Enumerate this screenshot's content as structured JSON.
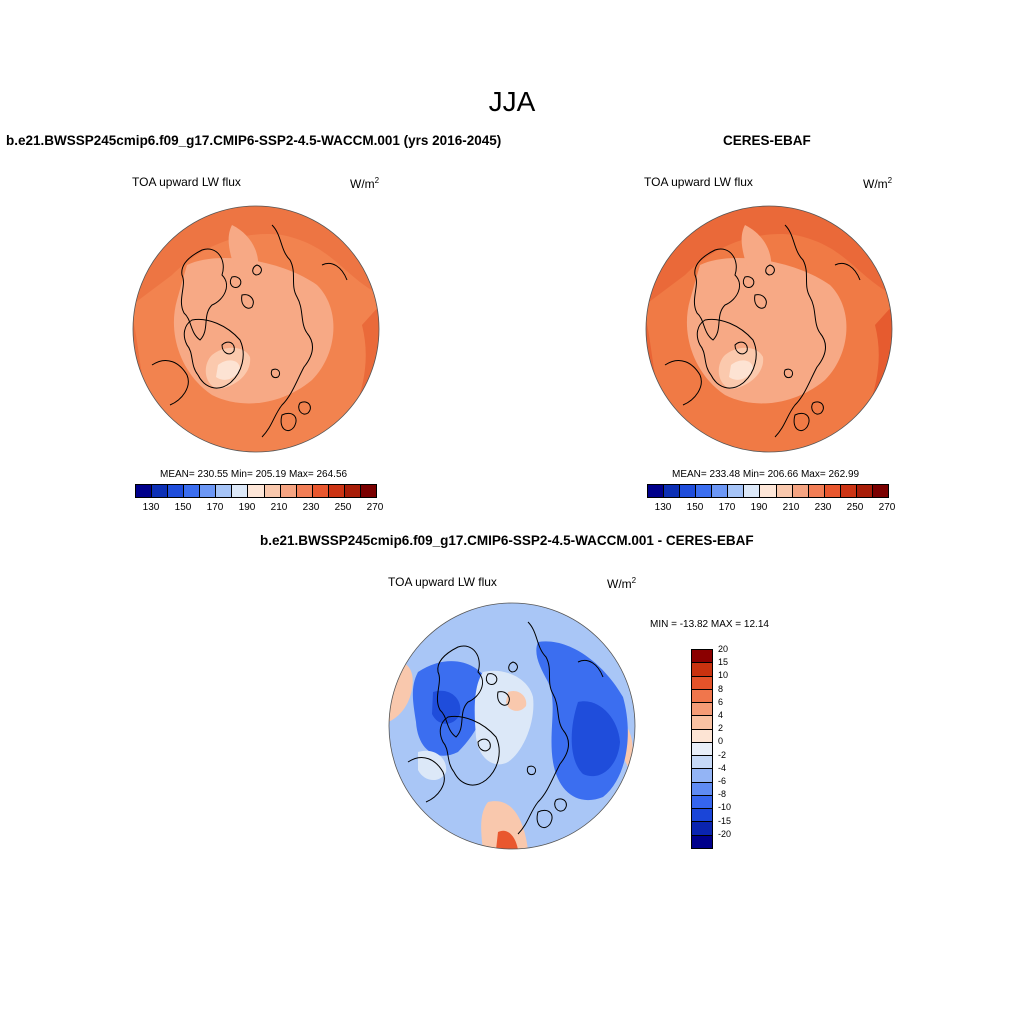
{
  "figure": {
    "season": "JJA"
  },
  "panels": {
    "model": {
      "title": "b.e21.BWSSP245cmip6.f09_g17.CMIP6-SSP2-4.5-WACCM.001 (yrs 2016-2045)",
      "variable": "TOA upward LW flux",
      "units_base": "W/m",
      "units_sup": "2",
      "stats": "MEAN= 230.55  Min= 205.19  Max= 264.56"
    },
    "obs": {
      "title": "CERES-EBAF",
      "variable": "TOA upward LW flux",
      "units_base": "W/m",
      "units_sup": "2",
      "stats": "MEAN= 233.48  Min= 206.66  Max= 262.99"
    },
    "diff": {
      "title": "b.e21.BWSSP245cmip6.f09_g17.CMIP6-SSP2-4.5-WACCM.001 - CERES-EBAF",
      "variable": "TOA upward LW flux",
      "units_base": "W/m",
      "units_sup": "2",
      "stats": "MIN = -13.82 MAX =  12.14"
    }
  },
  "colorbars": {
    "abs": {
      "colors": [
        "#00008b",
        "#0c2fb5",
        "#1f4ddb",
        "#3b6ef0",
        "#6c97f5",
        "#a6c4f7",
        "#dce8f8",
        "#fde6d8",
        "#f9c8ad",
        "#f5a482",
        "#f27e56",
        "#e9572e",
        "#cc3414",
        "#a81d08",
        "#7a0000"
      ],
      "tick_labels": [
        "130",
        "150",
        "170",
        "190",
        "210",
        "230",
        "250",
        "270"
      ]
    },
    "diff": {
      "colors": [
        "#00008b",
        "#0a24b0",
        "#1a45d8",
        "#3565ee",
        "#5f8bf3",
        "#93b4f5",
        "#c6d9f7",
        "#e8eef8",
        "#fde4d4",
        "#f9c1a2",
        "#f59b76",
        "#f0764c",
        "#e4532a",
        "#c9320f",
        "#8b0000"
      ],
      "tick_labels": [
        "-20",
        "-15",
        "-10",
        "-8",
        "-6",
        "-4",
        "-2",
        "0",
        "2",
        "4",
        "6",
        "8",
        "10",
        "15",
        "20"
      ]
    }
  },
  "map_fields": {
    "model_palette": {
      "ocean": "#f2834f",
      "warm": "#ea6a3a",
      "land": "#f7a985",
      "cold": "#fbc9ad",
      "ice": "#fde3d3"
    },
    "obs_palette": {
      "ocean": "#f07a45",
      "warm": "#e65b2f",
      "land": "#f7a985",
      "cold": "#fbc9ad",
      "ice": "#fde3d3"
    },
    "diff_palette": {
      "base": "#a9c6f6",
      "deep": "#1f4ddb",
      "mid": "#3b6ef0",
      "light": "#dce8f8",
      "warm": "#f9c8ad",
      "hot": "#e9572e"
    }
  }
}
